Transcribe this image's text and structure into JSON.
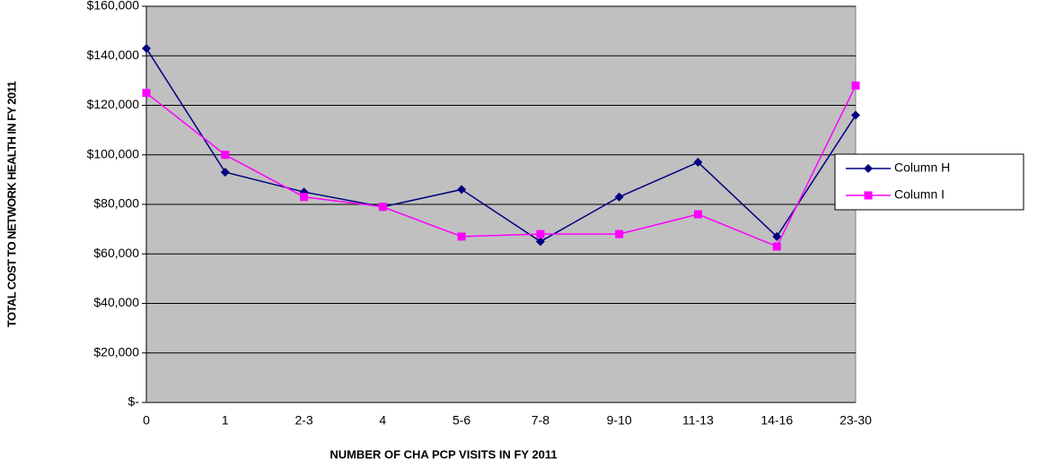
{
  "chart_data": {
    "type": "line",
    "x_label": "NUMBER OF CHA PCP VISITS IN FY 2011",
    "y_label": "TOTAL COST TO NETWORK HEALTH IN FY 2011",
    "categories": [
      "0",
      "1",
      "2-3",
      "4",
      "5-6",
      "7-8",
      "9-10",
      "11-13",
      "14-16",
      "23-30"
    ],
    "series": [
      {
        "name": "Column H",
        "color": "#000080",
        "marker": "diamond",
        "values": [
          143000,
          93000,
          85000,
          79000,
          86000,
          65000,
          83000,
          97000,
          67000,
          116000
        ]
      },
      {
        "name": "Column I",
        "color": "#ff00ff",
        "marker": "square",
        "values": [
          125000,
          100000,
          83000,
          79000,
          67000,
          68000,
          68000,
          76000,
          63000,
          128000
        ]
      }
    ],
    "ylim": [
      0,
      160000
    ],
    "yticks": [
      {
        "value": 0,
        "label": "$-"
      },
      {
        "value": 20000,
        "label": "$20,000"
      },
      {
        "value": 40000,
        "label": "$40,000"
      },
      {
        "value": 60000,
        "label": "$60,000"
      },
      {
        "value": 80000,
        "label": "$80,000"
      },
      {
        "value": 100000,
        "label": "$100,000"
      },
      {
        "value": 120000,
        "label": "$120,000"
      },
      {
        "value": 140000,
        "label": "$140,000"
      },
      {
        "value": 160000,
        "label": "$160,000"
      }
    ],
    "grid": true,
    "legend": "right",
    "plot_background": "#c0c0c0"
  }
}
